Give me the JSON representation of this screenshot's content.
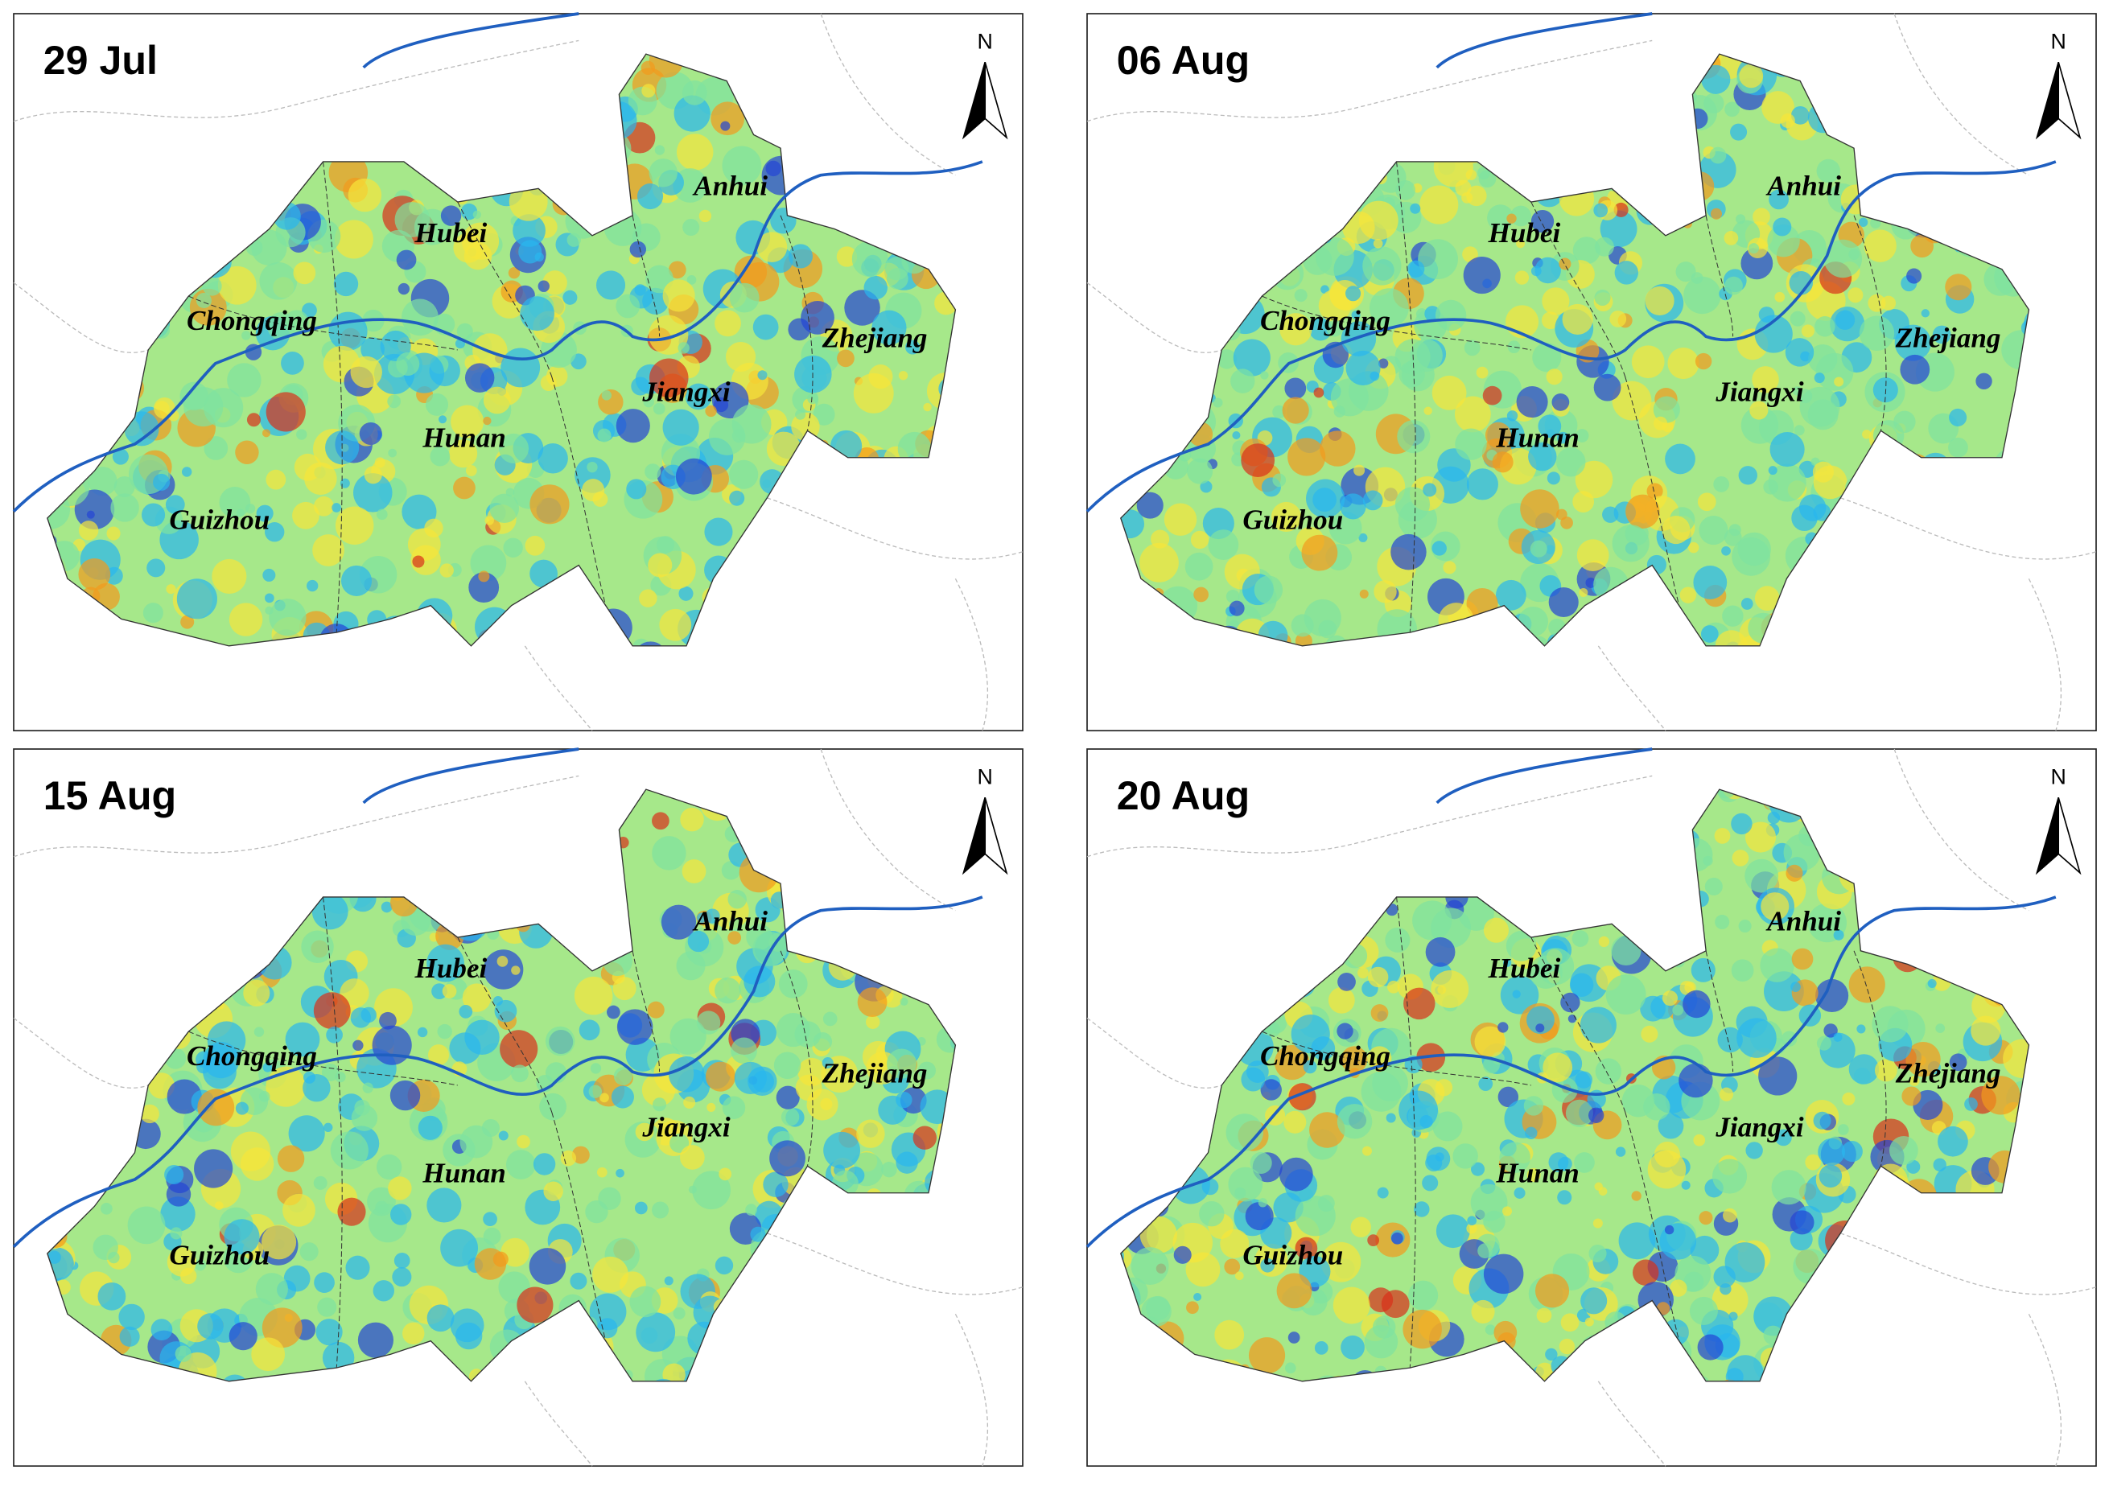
{
  "panels": [
    {
      "date": "29 Jul",
      "north": "N",
      "provinces": [
        "Anhui",
        "Hubei",
        "Chongqing",
        "Zhejiang",
        "Jiangxi",
        "Hunan",
        "Guizhou"
      ]
    },
    {
      "date": "06 Aug",
      "north": "N",
      "provinces": [
        "Anhui",
        "Hubei",
        "Chongqing",
        "Zhejiang",
        "Jiangxi",
        "Hunan",
        "Guizhou"
      ]
    },
    {
      "date": "15 Aug",
      "north": "N",
      "provinces": [
        "Anhui",
        "Hubei",
        "Chongqing",
        "Zhejiang",
        "Jiangxi",
        "Hunan",
        "Guizhou"
      ]
    },
    {
      "date": "20 Aug",
      "north": "N",
      "provinces": [
        "Anhui",
        "Hubei",
        "Chongqing",
        "Zhejiang",
        "Jiangxi",
        "Hunan",
        "Guizhou"
      ]
    }
  ]
}
